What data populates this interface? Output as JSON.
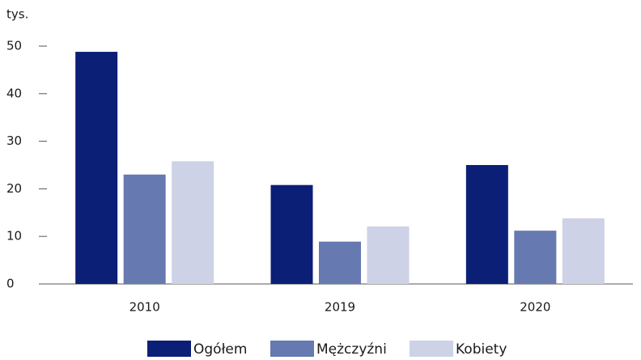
{
  "chart_data": {
    "type": "bar",
    "ylabel": "tys.",
    "categories": [
      "2010",
      "2019",
      "2020"
    ],
    "series": [
      {
        "name": "Ogółem",
        "color": "#0c1f77",
        "values": [
          48.8,
          20.8,
          25.0
        ]
      },
      {
        "name": "Mężczyźni",
        "color": "#6779b1",
        "values": [
          23.0,
          8.9,
          11.2
        ]
      },
      {
        "name": "Kobiety",
        "color": "#cdd2e6",
        "values": [
          25.8,
          12.1,
          13.8
        ]
      }
    ],
    "ylim": [
      0,
      50
    ],
    "yticks": [
      0,
      10,
      20,
      30,
      40,
      50
    ],
    "grid": false,
    "legend": "bottom"
  }
}
